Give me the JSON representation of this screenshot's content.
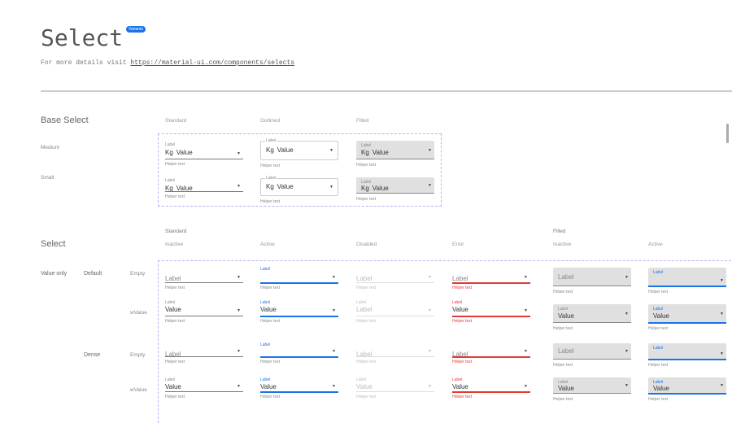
{
  "header": {
    "title": "Select",
    "badge": "Variants",
    "subtitle_prefix": "For more details visit ",
    "subtitle_link": "https://material-ui.com/components/selects"
  },
  "colors": {
    "accent": "#1a73e8",
    "error": "#e53935",
    "filled_bg": "#e0e0e0",
    "dashed_border": "#b9b0ee"
  },
  "base": {
    "title": "Base Select",
    "columns": [
      "Standard",
      "Outlined",
      "Filled"
    ],
    "rows": [
      {
        "name": "Medium",
        "cells": [
          {
            "label": "Label",
            "prefix": "Kg",
            "value": "Value",
            "helper": "Helper text"
          },
          {
            "label": "Label",
            "prefix": "Kg",
            "value": "Value",
            "helper": "Helper text"
          },
          {
            "label": "Label",
            "prefix": "Kg",
            "value": "Value",
            "helper": "Helper text"
          }
        ]
      },
      {
        "name": "Small",
        "cells": [
          {
            "label": "Label",
            "prefix": "Kg",
            "value": "Value",
            "helper": "Helper text"
          },
          {
            "label": "Label",
            "prefix": "Kg",
            "value": "Value",
            "helper": "Helper text"
          },
          {
            "label": "Label",
            "prefix": "Kg",
            "value": "Value",
            "helper": "Helper text"
          }
        ]
      }
    ]
  },
  "select": {
    "title": "Select",
    "groups": [
      "Standard",
      "Filled"
    ],
    "columns": [
      {
        "header": "Inactive",
        "variant": "standard",
        "state": "inactive"
      },
      {
        "header": "Active",
        "variant": "standard",
        "state": "active"
      },
      {
        "header": "Disabled",
        "variant": "standard",
        "state": "disabled"
      },
      {
        "header": "Error",
        "variant": "standard",
        "state": "error"
      },
      {
        "header": "Inactive",
        "variant": "filled",
        "state": "inactive"
      },
      {
        "header": "Active",
        "variant": "filled",
        "state": "active"
      }
    ],
    "row_group": "Value only",
    "rows": [
      {
        "size": "Default",
        "kind": "Empty",
        "cells": [
          {
            "label": "Label",
            "value": "",
            "helper": "Helper text"
          },
          {
            "label": "Label",
            "value": "",
            "helper": "Helper text"
          },
          {
            "label": "Label",
            "value": "",
            "helper": "Helper text"
          },
          {
            "label": "Label",
            "value": "",
            "helper": "Helper text"
          },
          {
            "label": "Label",
            "value": "",
            "helper": "Helper text"
          },
          {
            "label": "Label",
            "value": "",
            "helper": "Helper text"
          }
        ]
      },
      {
        "size": "",
        "kind": "wValue",
        "cells": [
          {
            "label": "Label",
            "value": "Value",
            "helper": "Helper text"
          },
          {
            "label": "Label",
            "value": "Value",
            "helper": "Helper text"
          },
          {
            "label": "Label",
            "value": "Label",
            "helper": "Helper text"
          },
          {
            "label": "Label",
            "value": "Value",
            "helper": "Helper text"
          },
          {
            "label": "Label",
            "value": "Value",
            "helper": "Helper text"
          },
          {
            "label": "Label",
            "value": "Value",
            "helper": "Helper text"
          }
        ]
      },
      {
        "size": "Dense",
        "kind": "Empty",
        "cells": [
          {
            "label": "Label",
            "value": "",
            "helper": "Helper text"
          },
          {
            "label": "Label",
            "value": "",
            "helper": "Helper text"
          },
          {
            "label": "Label",
            "value": "",
            "helper": "Helper text"
          },
          {
            "label": "Label",
            "value": "",
            "helper": "Helper text"
          },
          {
            "label": "Label",
            "value": "",
            "helper": "Helper text"
          },
          {
            "label": "Label",
            "value": "",
            "helper": "Helper text"
          }
        ]
      },
      {
        "size": "",
        "kind": "wValue",
        "cells": [
          {
            "label": "Label",
            "value": "Value",
            "helper": "Helper text"
          },
          {
            "label": "Label",
            "value": "Value",
            "helper": "Helper text"
          },
          {
            "label": "Label",
            "value": "Value",
            "helper": "Helper text"
          },
          {
            "label": "Label",
            "value": "Value",
            "helper": "Helper text"
          },
          {
            "label": "Label",
            "value": "Value",
            "helper": "Helper text"
          },
          {
            "label": "Label",
            "value": "Value",
            "helper": "Helper text"
          }
        ]
      }
    ]
  }
}
